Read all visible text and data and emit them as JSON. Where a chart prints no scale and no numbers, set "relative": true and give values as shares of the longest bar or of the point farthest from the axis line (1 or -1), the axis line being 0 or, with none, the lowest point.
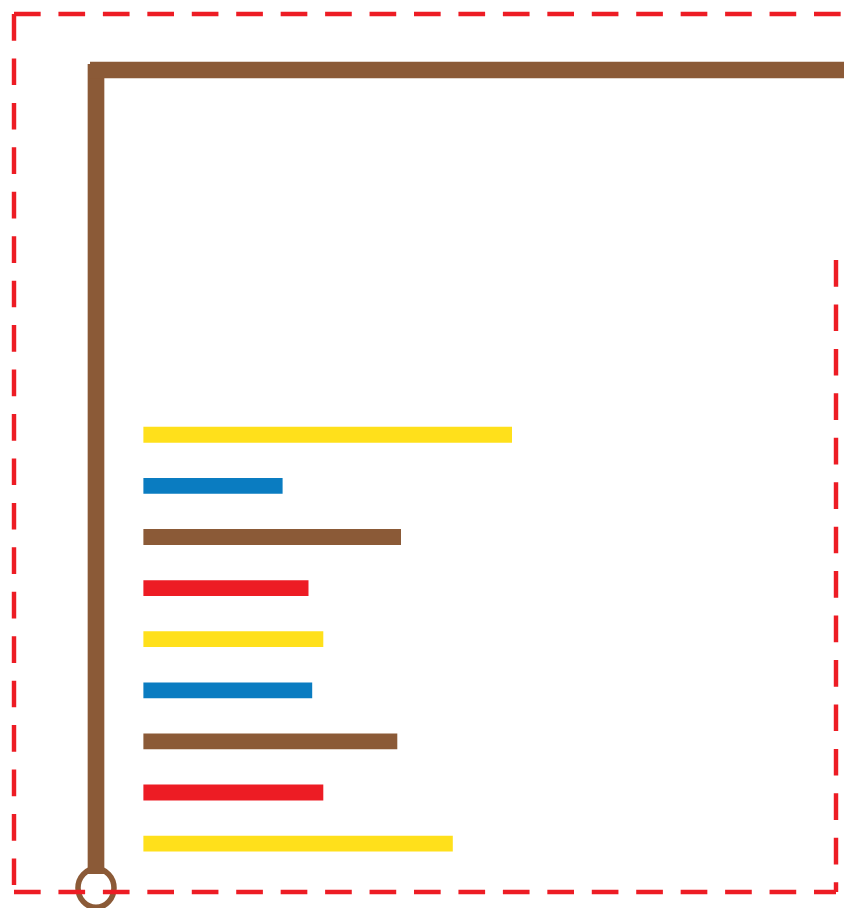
{
  "chart_data": {
    "type": "bar",
    "orientation": "horizontal",
    "relative": true,
    "categories": [
      null,
      null,
      null,
      null,
      null,
      null,
      null,
      null,
      null
    ],
    "values": [
      1,
      0.38,
      0.7,
      0.45,
      0.49,
      0.46,
      0.69,
      0.49,
      0.84
    ],
    "colors": [
      "#ffe01b",
      "#0a7cc1",
      "#8b5a37",
      "#ed1c24",
      "#ffe01b",
      "#0a7cc1",
      "#8b5a37",
      "#ed1c24",
      "#ffe01b"
    ]
  }
}
